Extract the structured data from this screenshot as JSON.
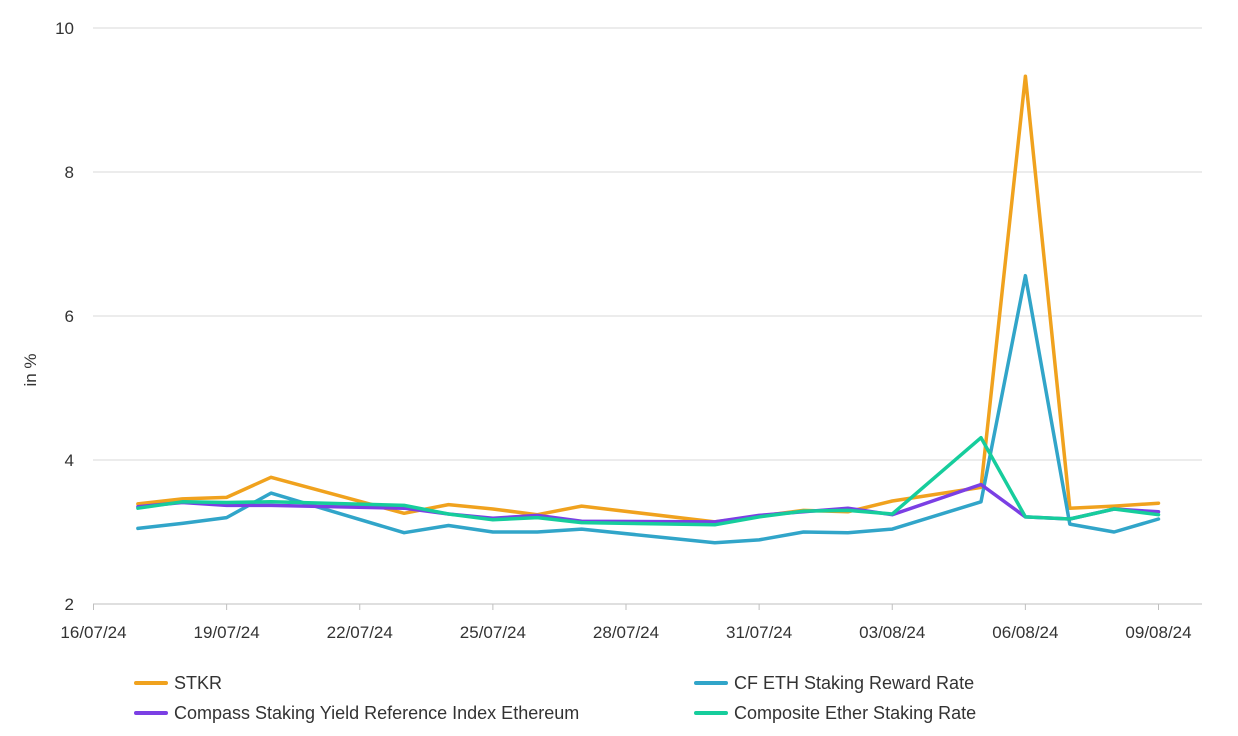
{
  "chart_data": {
    "type": "line",
    "title": "",
    "xlabel": "",
    "ylabel": "in %",
    "ylim": [
      2,
      10
    ],
    "yticks": [
      "2",
      "4",
      "6",
      "8",
      "10"
    ],
    "xticks": [
      "16/07/24",
      "19/07/24",
      "22/07/24",
      "25/07/24",
      "28/07/24",
      "31/07/24",
      "03/08/24",
      "06/08/24",
      "09/08/24"
    ],
    "grid": "horizontal",
    "legend_position": "bottom",
    "x": [
      "17/07/24",
      "18/07/24",
      "19/07/24",
      "20/07/24",
      "23/07/24",
      "24/07/24",
      "25/07/24",
      "26/07/24",
      "27/07/24",
      "30/07/24",
      "31/07/24",
      "01/08/24",
      "02/08/24",
      "03/08/24",
      "05/08/24",
      "06/08/24",
      "07/08/24",
      "08/08/24",
      "09/08/24"
    ],
    "series": [
      {
        "name": "STKR",
        "color": "#F0A21E",
        "values": [
          3.39,
          3.46,
          3.48,
          3.76,
          3.26,
          3.38,
          3.32,
          3.24,
          3.36,
          3.14,
          3.22,
          3.3,
          3.28,
          3.43,
          3.62,
          9.33,
          3.33,
          3.36,
          3.4
        ]
      },
      {
        "name": "CF ETH Staking Reward Rate",
        "color": "#31A5C9",
        "values": [
          3.05,
          3.12,
          3.2,
          3.54,
          2.99,
          3.09,
          3.0,
          3.0,
          3.04,
          2.85,
          2.89,
          3.0,
          2.99,
          3.04,
          3.42,
          6.56,
          3.11,
          3.0,
          3.18
        ]
      },
      {
        "name": "Compass Staking Yield Reference Index Ethereum",
        "color": "#7B3FE4",
        "values": [
          3.35,
          3.41,
          3.37,
          3.37,
          3.33,
          3.25,
          3.19,
          3.23,
          3.15,
          3.14,
          3.23,
          3.28,
          3.33,
          3.24,
          3.66,
          3.21,
          3.18,
          3.32,
          3.28
        ]
      },
      {
        "name": "Composite Ether Staking Rate",
        "color": "#16CD9C",
        "values": [
          3.33,
          3.42,
          3.41,
          3.42,
          3.37,
          3.25,
          3.17,
          3.2,
          3.13,
          3.1,
          3.21,
          3.29,
          3.3,
          3.25,
          4.31,
          3.21,
          3.18,
          3.32,
          3.24
        ]
      }
    ]
  }
}
